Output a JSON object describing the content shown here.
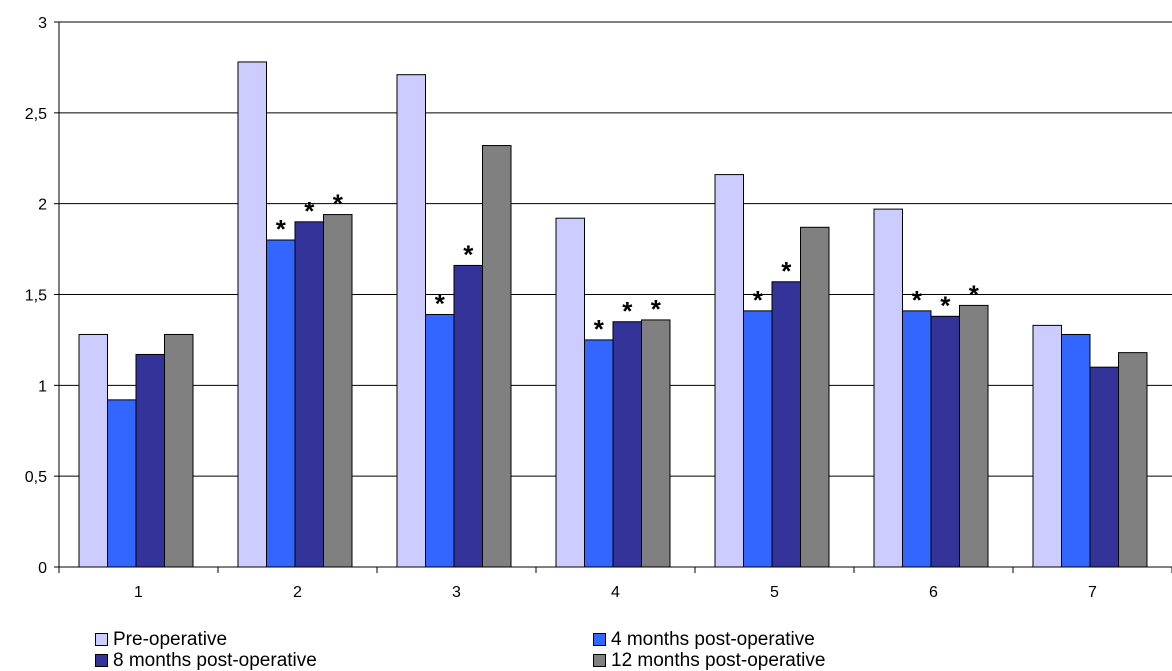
{
  "chart_data": {
    "type": "bar",
    "categories": [
      "1",
      "2",
      "3",
      "4",
      "5",
      "6",
      "7"
    ],
    "series": [
      {
        "name": "Pre-operative",
        "color": "#CCCCFF",
        "values": [
          1.28,
          2.78,
          2.71,
          1.92,
          2.16,
          1.97,
          1.33
        ],
        "stars": [
          false,
          false,
          false,
          false,
          false,
          false,
          false
        ]
      },
      {
        "name": "4 months post-operative",
        "color": "#3366FF",
        "values": [
          0.92,
          1.8,
          1.39,
          1.25,
          1.41,
          1.41,
          1.28
        ],
        "stars": [
          false,
          true,
          true,
          true,
          true,
          true,
          false
        ]
      },
      {
        "name": "8 months post-operative",
        "color": "#333399",
        "values": [
          1.17,
          1.9,
          1.66,
          1.35,
          1.57,
          1.38,
          1.1
        ],
        "stars": [
          false,
          true,
          true,
          true,
          true,
          true,
          false
        ]
      },
      {
        "name": "12 months post-operative",
        "color": "#808080",
        "values": [
          1.28,
          1.94,
          2.32,
          1.36,
          1.87,
          1.44,
          1.18
        ],
        "stars": [
          false,
          true,
          false,
          true,
          false,
          true,
          false
        ]
      }
    ],
    "star_label": "*",
    "ylim": [
      0,
      3
    ],
    "yticks": [
      0,
      0.5,
      1,
      1.5,
      2,
      2.5,
      3
    ],
    "ytick_labels": [
      "0",
      "0,5",
      "1",
      "1,5",
      "2",
      "2,5",
      "3"
    ],
    "grid": true,
    "legend_position": "bottom",
    "title": "",
    "xlabel": "",
    "ylabel": ""
  }
}
